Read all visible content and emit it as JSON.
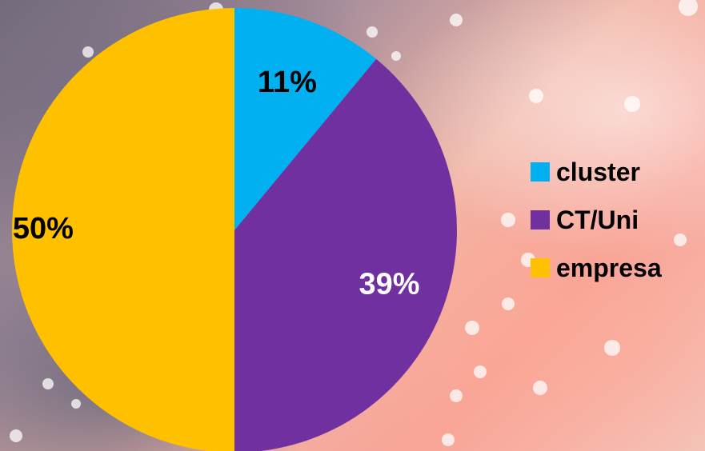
{
  "chart_data": {
    "type": "pie",
    "categories": [
      "cluster",
      "CT/Uni",
      "empresa"
    ],
    "values": [
      11,
      39,
      50
    ],
    "value_labels": [
      "11%",
      "39%",
      "50%"
    ],
    "colors": [
      "#00b0f0",
      "#7030a0",
      "#ffc000"
    ],
    "label_colors": [
      "#000000",
      "#ffffff",
      "#000000"
    ],
    "start_angle_deg": 0,
    "direction": "clockwise",
    "legend_position": "right"
  },
  "legend": {
    "items": [
      {
        "label": "cluster",
        "color": "#00b0f0"
      },
      {
        "label": "CT/Uni",
        "color": "#7030a0"
      },
      {
        "label": "empresa",
        "color": "#ffc000"
      }
    ]
  }
}
